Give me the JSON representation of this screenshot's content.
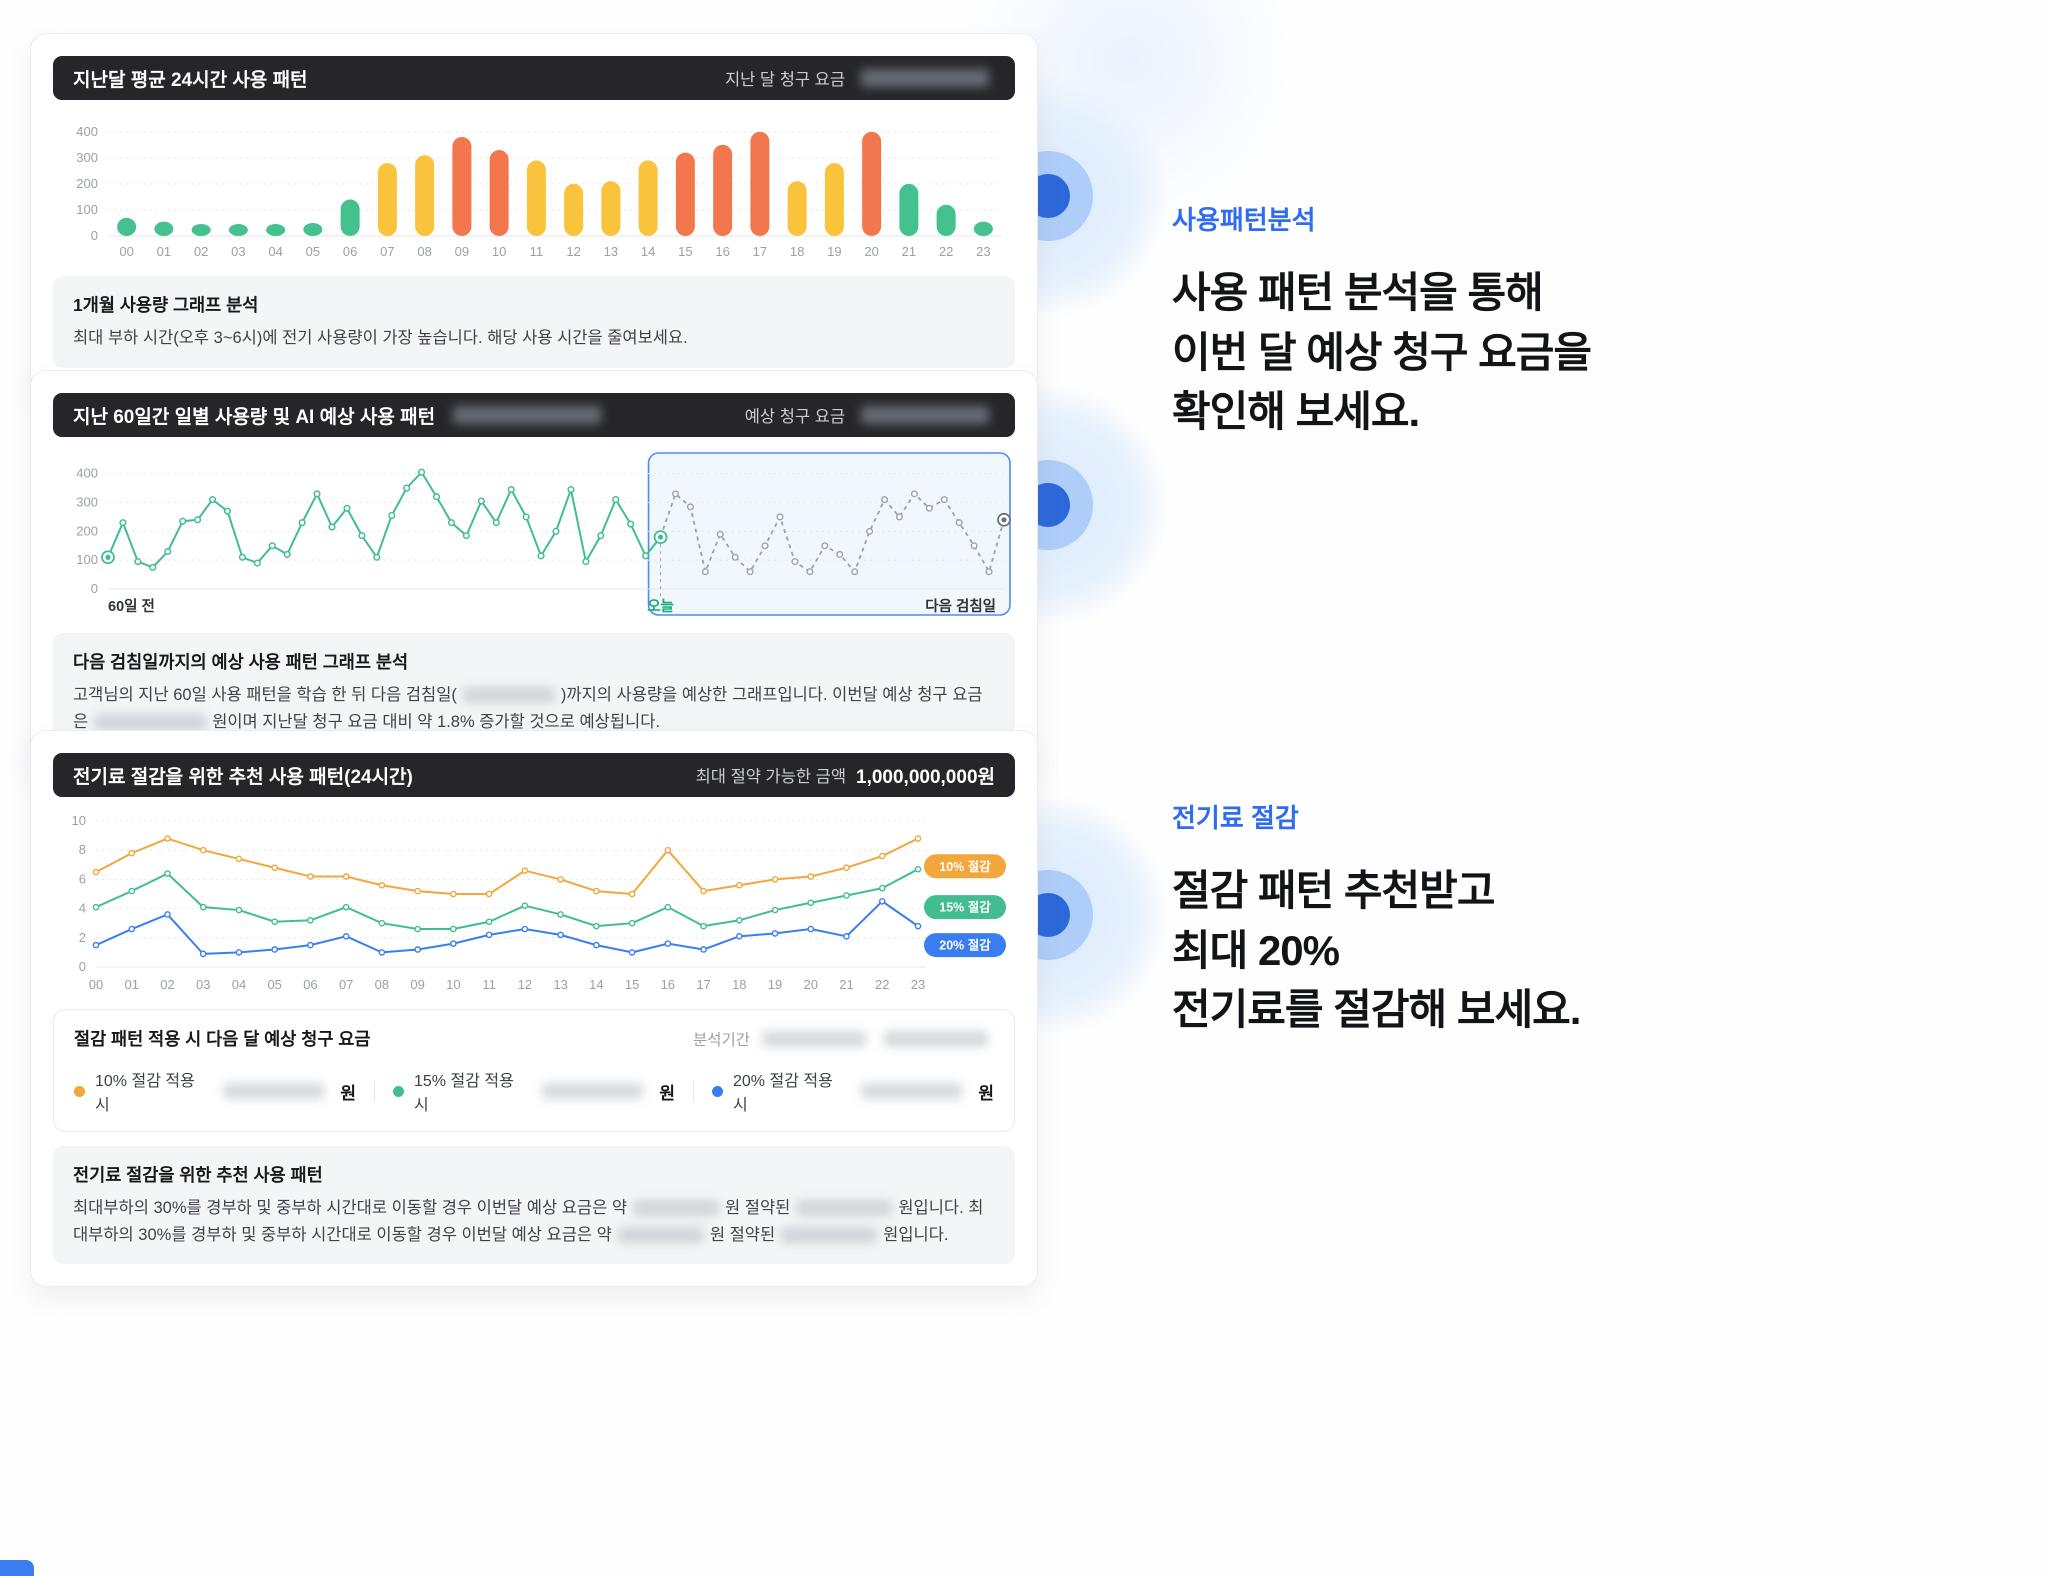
{
  "card1": {
    "header_title": "지난달 평균 24시간 사용 패턴",
    "header_right_label": "지난 달 청구 요금",
    "analysis_title": "1개월 사용량 그래프 분석",
    "analysis_body": "최대 부하 시간(오후 3~6시)에 전기 사용량이 가장 높습니다. 해당 사용 시간을 줄여보세요."
  },
  "card2": {
    "header_title": "지난 60일간 일별 사용량 및 AI 예상 사용 패턴",
    "header_right_label": "예상 청구 요금",
    "analysis_title": "다음 검침일까지의 예상 사용 패턴 그래프 분석",
    "body_part1": "고객님의 지난 60일 사용 패턴을 학습 한 뒤 다음 검침일(",
    "body_part2": ")까지의 사용량을 예상한 그래프입니다. 이번달 예상 청구 요금은",
    "body_part3": "원이며 지난달 청구 요금 대비 약 1.8% 증가할 것으로 예상됩니다."
  },
  "card3": {
    "header_title": "전기료 절감을 위한 추천 사용 패턴(24시간)",
    "header_right_label": "최대 절약 가능한 금액",
    "header_right_value": "1,000,000,000원",
    "billing_title": "절감 패턴 적용 시 다음 달 예상 청구 요금",
    "analysis_period_label": "분석기간",
    "legend": [
      {
        "label": "10% 절감 적용 시",
        "unit": "원",
        "color": "#f2a63b"
      },
      {
        "label": "15% 절감 적용 시",
        "unit": "원",
        "color": "#41bd8f"
      },
      {
        "label": "20% 절감 적용 시",
        "unit": "원",
        "color": "#3a7df0"
      }
    ],
    "analysis_title": "전기료 절감을 위한 추천 사용 패턴",
    "body_part1": "최대부하의 30%를 경부하 및 중부하 시간대로 이동할 경우 이번달 예상 요금은 약",
    "body_part2": "원 절약된",
    "body_part3": "원입니다. 최대부하의 30%를 경부하 및 중부하 시간대로 이동할 경우 이번달 예상 요금은 약",
    "body_part4": "원 절약된",
    "body_part5": "원입니다."
  },
  "right_panel": {
    "section1": {
      "eyebrow": "사용패턴분석",
      "headline": "사용 패턴 분석을 통해\n이번 달 예상 청구 요금을\n확인해 보세요."
    },
    "section2": {
      "eyebrow": "전기료 절감",
      "headline": "절감 패턴 추천받고\n최대 20%\n전기료를 절감해 보세요."
    }
  },
  "chart_data": [
    {
      "id": "hourly-bars",
      "type": "bar",
      "title": "지난달 평균 24시간 사용 패턴",
      "categories": [
        "00",
        "01",
        "02",
        "03",
        "04",
        "05",
        "06",
        "07",
        "08",
        "09",
        "10",
        "11",
        "12",
        "13",
        "14",
        "15",
        "16",
        "17",
        "18",
        "19",
        "20",
        "21",
        "22",
        "23"
      ],
      "values": [
        70,
        55,
        45,
        45,
        45,
        50,
        140,
        280,
        310,
        380,
        330,
        290,
        200,
        210,
        290,
        320,
        350,
        400,
        210,
        280,
        400,
        200,
        120,
        55
      ],
      "colors": [
        "#45c18f",
        "#45c18f",
        "#45c18f",
        "#45c18f",
        "#45c18f",
        "#45c18f",
        "#45c18f",
        "#f9c33c",
        "#f9c33c",
        "#f2764e",
        "#f2764e",
        "#f9c33c",
        "#f9c33c",
        "#f9c33c",
        "#f9c33c",
        "#f2764e",
        "#f2764e",
        "#f2764e",
        "#f9c33c",
        "#f9c33c",
        "#f2764e",
        "#45c18f",
        "#45c18f",
        "#45c18f"
      ],
      "ylim": [
        0,
        430
      ],
      "yticks": [
        0,
        100,
        200,
        300,
        400
      ],
      "xlabel": "",
      "ylabel": ""
    },
    {
      "id": "daily-60",
      "type": "line",
      "title": "지난 60일간 일별 사용량 및 AI 예상 사용 패턴",
      "ylim": [
        0,
        430
      ],
      "yticks": [
        0,
        100,
        200,
        300,
        400
      ],
      "actual": [
        110,
        230,
        95,
        75,
        130,
        235,
        240,
        310,
        270,
        110,
        90,
        150,
        120,
        230,
        330,
        215,
        280,
        185,
        110,
        255,
        350,
        405,
        320,
        230,
        185,
        305,
        230,
        345,
        250,
        115,
        200,
        345,
        95,
        185,
        310,
        225,
        115,
        180
      ],
      "forecast": [
        180,
        330,
        285,
        60,
        190,
        110,
        60,
        150,
        250,
        95,
        60,
        150,
        120,
        60,
        200,
        310,
        250,
        330,
        280,
        310,
        230,
        150,
        60,
        240
      ],
      "x_labels": {
        "left": "60일 전",
        "today": "오늘",
        "right": "다음 검침일"
      },
      "colors": {
        "actual": "#41bd8f",
        "forecast": "#9aa3ad",
        "box": "#4f8af5"
      }
    },
    {
      "id": "savings",
      "type": "line",
      "title": "전기료 절감을 위한 추천 사용 패턴(24시간)",
      "categories": [
        "00",
        "01",
        "02",
        "03",
        "04",
        "05",
        "06",
        "07",
        "08",
        "09",
        "10",
        "11",
        "12",
        "13",
        "14",
        "15",
        "16",
        "17",
        "18",
        "19",
        "20",
        "21",
        "22",
        "23"
      ],
      "ylim": [
        0,
        10
      ],
      "yticks": [
        0,
        2,
        4,
        6,
        8,
        10
      ],
      "series": [
        {
          "name": "10% 절감",
          "color": "#f2a63b",
          "badge_y": 6.9,
          "values": [
            6.5,
            7.8,
            8.8,
            8.0,
            7.4,
            6.8,
            6.2,
            6.2,
            5.6,
            5.2,
            5.0,
            5.0,
            6.6,
            6.0,
            5.2,
            5.0,
            8.0,
            5.2,
            5.6,
            6.0,
            6.2,
            6.8,
            7.6,
            8.8
          ]
        },
        {
          "name": "15% 절감",
          "color": "#41bd8f",
          "badge_y": 4.1,
          "values": [
            4.1,
            5.2,
            6.4,
            4.1,
            3.9,
            3.1,
            3.2,
            4.1,
            3.0,
            2.6,
            2.6,
            3.1,
            4.2,
            3.6,
            2.8,
            3.0,
            4.1,
            2.8,
            3.2,
            3.9,
            4.4,
            4.9,
            5.4,
            6.7
          ]
        },
        {
          "name": "20% 절감",
          "color": "#3a7df0",
          "badge_y": 1.5,
          "values": [
            1.5,
            2.6,
            3.6,
            0.9,
            1.0,
            1.2,
            1.5,
            2.1,
            1.0,
            1.2,
            1.6,
            2.2,
            2.6,
            2.2,
            1.5,
            1.0,
            1.6,
            1.2,
            2.1,
            2.3,
            2.6,
            2.1,
            4.5,
            2.8
          ]
        }
      ]
    }
  ]
}
